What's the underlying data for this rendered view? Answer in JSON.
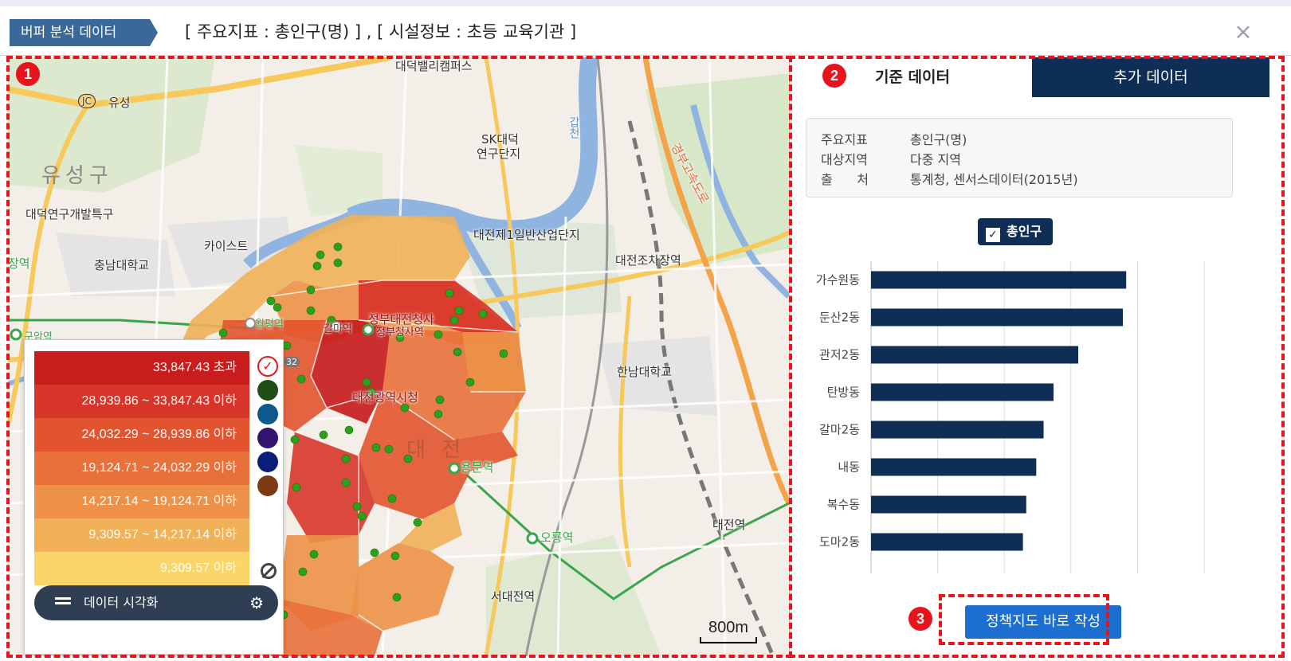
{
  "header": {
    "breadcrumb": "버퍼 분석 데이터",
    "title": "[ 주요지표 : 총인구(명) ] , [ 시설정보 : 초등 교육기관 ]",
    "close_symbol": "×"
  },
  "markers": {
    "m1": "1",
    "m2": "2",
    "m3": "3"
  },
  "map": {
    "labels": {
      "campus": "대덕밸리캠퍼스",
      "ic": "JC",
      "yuseong": "유성",
      "district": "유성구",
      "sk": "SK대덕",
      "sk2": "연구단지",
      "daedeok": "대덕연구개발특구",
      "kaist": "카이스트",
      "cnu": "충남대학교",
      "industrial": "대전제1일반산업단지",
      "jochawon": "대전조차장역",
      "govt": "정부대전청사",
      "cityhall": "대전광역시청",
      "hannam": "한남대학교",
      "daejeon_big": "대 전",
      "yongmun": "용문역",
      "oryong": "오룡역",
      "seodaejeon": "서대전역",
      "daejeon_station": "대전역",
      "station_left": "장역",
      "gapcheon": "갑천",
      "expressway": "경부고속도로",
      "wolpyeong": "월평역",
      "galma": "갈마역",
      "jeongbu_station": "정부청사역",
      "guam": "구암역",
      "road_num": "32"
    },
    "scale": "800m"
  },
  "legend": {
    "classes": [
      {
        "label": "33,847.43 초과",
        "color": "#c81d1d"
      },
      {
        "label": "28,939.86 ~ 33,847.43 이하",
        "color": "#d8352a"
      },
      {
        "label": "24,032.29 ~ 28,939.86 이하",
        "color": "#e2542f"
      },
      {
        "label": "19,124.71 ~ 24,032.29 이하",
        "color": "#e8703a"
      },
      {
        "label": "14,217.14 ~ 19,124.71 이하",
        "color": "#ec9147"
      },
      {
        "label": "9,309.57 ~ 14,217.14 이하",
        "color": "#f0b158"
      },
      {
        "label": "9,309.57 이하",
        "color": "#f9d56a"
      }
    ],
    "palette": [
      "#ffffff",
      "#1f4d16",
      "#0e5a8a",
      "#331570",
      "#0b1f7a",
      "#7b3a12"
    ],
    "check_symbol": "✓",
    "viz_button": "데이터 시각화",
    "gear_symbol": "⚙"
  },
  "panel": {
    "tab_active": "기준 데이터",
    "tab_inactive": "추가 데이터",
    "info": [
      {
        "key": "주요지표",
        "value": "총인구(명)"
      },
      {
        "key": "대상지역",
        "value": "다중 지역"
      },
      {
        "key": "출      처",
        "value": "통계청, 센서스데이터(2015년)"
      }
    ],
    "series_label": "총인구",
    "check_symbol": "✓",
    "policy_button": "정책지도 바로 작성"
  },
  "chart_data": {
    "type": "bar",
    "orientation": "horizontal",
    "categories": [
      "가수원동",
      "둔산2동",
      "관저2동",
      "탄방동",
      "갈마2동",
      "내동",
      "복수동",
      "도마2동"
    ],
    "values": [
      38300,
      37800,
      31100,
      27400,
      25900,
      24800,
      23300,
      22800
    ],
    "color": "#0f2e56",
    "xlim": [
      0,
      50000
    ],
    "grid": true
  }
}
